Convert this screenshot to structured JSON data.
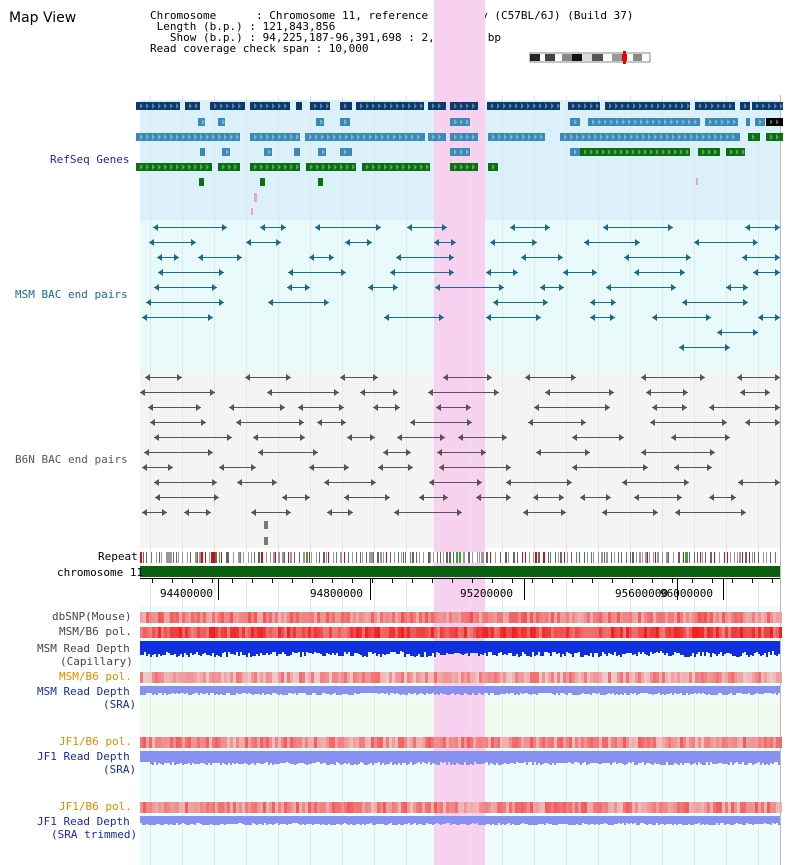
{
  "app": {
    "title": "Map View"
  },
  "header": {
    "lines": [
      "Chromosome      : Chromosome 11, reference assembly (C57BL/6J) (Build 37)",
      " Length (b.p.) : 121,843,856",
      "   Show (b.p.) : 94,225,187-96,391,698 : 2,166,512 bp",
      "Read coverage check span : 10,000"
    ]
  },
  "tracks": {
    "refseq": "RefSeq Genes",
    "msm_bac": "MSM BAC end pairs",
    "b6n_bac": "B6N BAC end pairs",
    "repeat": "Repeat",
    "chromosome": "chromosome 11",
    "dbsnp": "dbSNP(Mouse)",
    "msm_b6_pol": "MSM/B6 pol.",
    "msm_depth_cap_1": "MSM Read Depth",
    "msm_depth_cap_2": "(Capillary)",
    "msm_b6_pol_2": "MSM/B6 pol.",
    "msm_depth_sra_1": "MSM Read Depth",
    "msm_depth_sra_2": "(SRA)",
    "jf1_b6_pol": "JF1/B6 pol.",
    "jf1_depth_sra_1": "JF1 Read Depth",
    "jf1_depth_sra_2": "(SRA)",
    "jf1_b6_pol_2": "JF1/B6 pol.",
    "jf1_depth_trim_1": "JF1 Read Depth",
    "jf1_depth_trim_2": "(SRA trimmed)"
  },
  "axis": {
    "ticks": [
      "94400000",
      "94800000",
      "95200000",
      "95600000",
      "96000000"
    ]
  },
  "colors": {
    "refseq_dark": "#0a3a6e",
    "refseq_mid": "#3a8ab8",
    "refseq_green": "#0a7010",
    "msm_bac": "#1a6a8a",
    "b6n_bac": "#555555",
    "highlight": "#f8d0f0",
    "depth_blue": "#1030e0",
    "depth_light": "#8890f0"
  }
}
